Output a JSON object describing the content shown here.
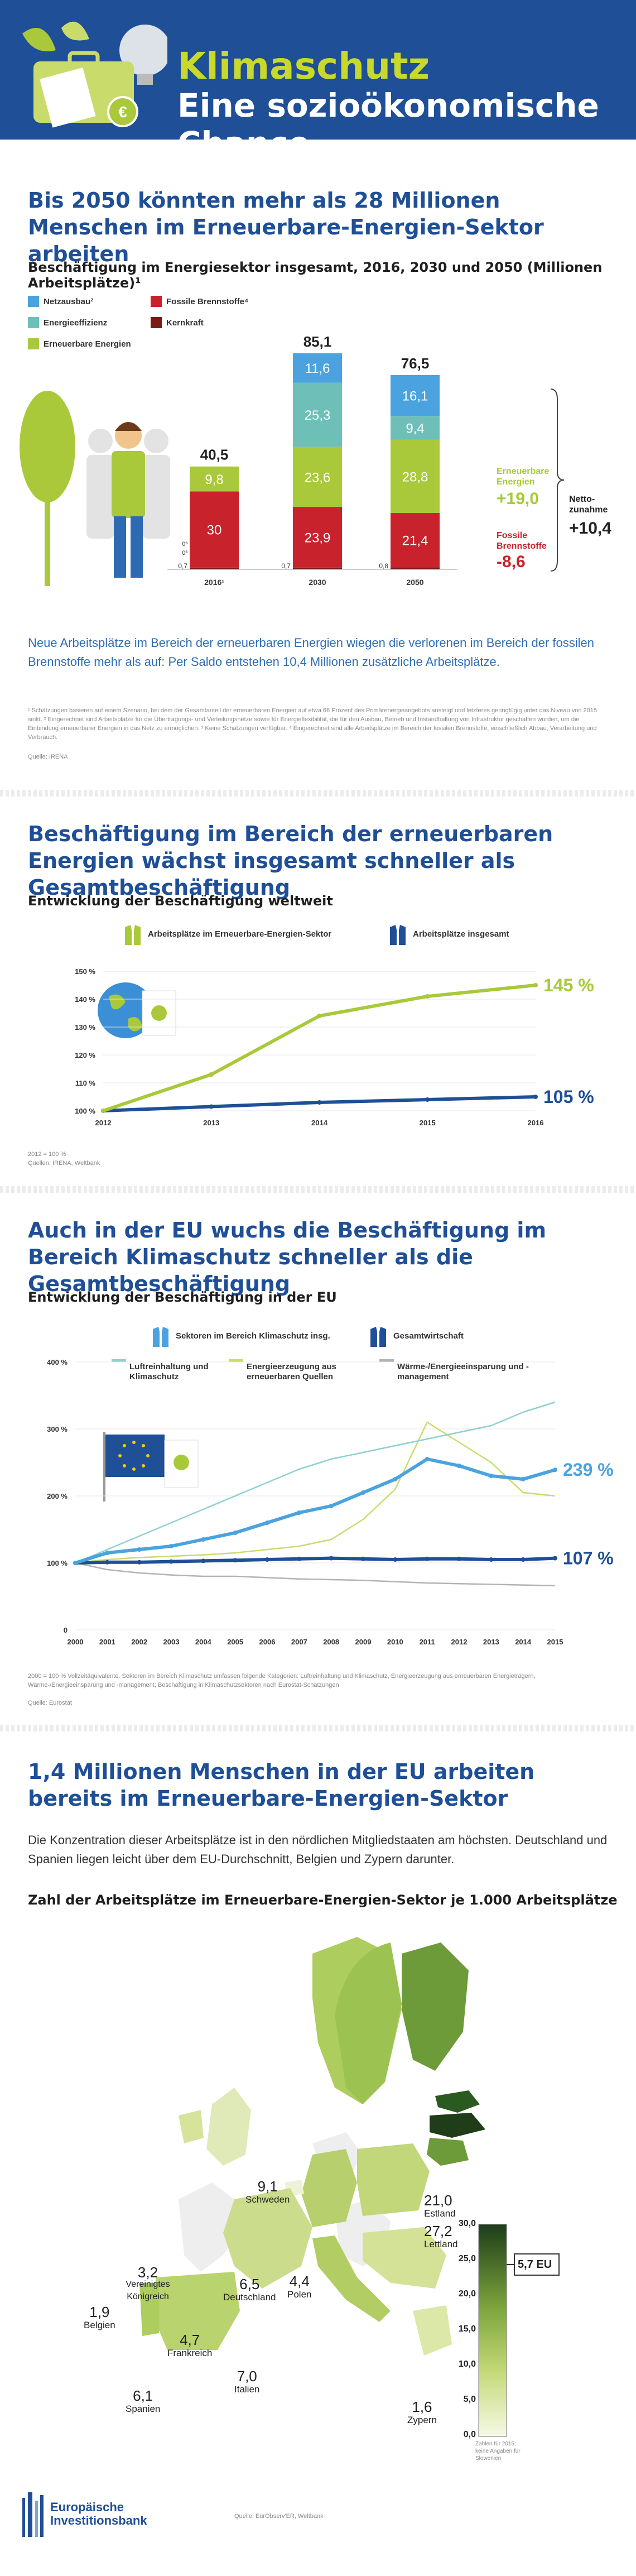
{
  "header": {
    "title": "Klimaschutz",
    "subtitle": "Eine sozioökonomische Chance"
  },
  "colors": {
    "blue_dark": "#1f4f96",
    "lime": "#a9c93a",
    "red": "#c8232c",
    "teal": "#6fbfb9",
    "light_blue": "#4aa3df",
    "grey": "#b3b3b3"
  },
  "section1": {
    "title": "Bis 2050 könnten mehr als 28 Millionen Menschen im Erneuerbare-Energien-Sektor arbeiten",
    "chart_title": "Beschäftigung im Energiesektor insgesamt, 2016, 2030 und 2050 (Millionen Arbeitsplätze)¹",
    "text": "Neue Arbeitsplätze im Bereich der erneuerbaren Energien wiegen die verlorenen im Bereich der fossilen Brennstoffe mehr als auf: Per Saldo entstehen 10,4 Millionen zusätzliche Arbeitsplätze.",
    "footnote": "¹ Schätzungen basieren auf einem Szenario, bei dem der Gesamtanteil der erneuerbaren Energien auf etwa 66 Prozent des Primärenergieangebots ansteigt und letzteres geringfügig unter das Niveau von 2015 sinkt. ² Eingerechnet sind Arbeitsplätze für die Übertragungs- und Verteilungsnetze sowie für Energieflexibilität, die für den Ausbau, Betrieb und Instandhaltung von Infrastruktur geschaffen wurden, um die Einbindung erneuerbarer Energien in das Netz zu ermöglichen. ³ Keine Schätzungen verfügbar. ⁴ Eingerechnet sind alle Arbeitsplätze im Bereich der fossilen Brennstoffe, einschließlich Abbau, Verarbeitung und Verbrauch.",
    "source": "Quelle: IRENA",
    "side": {
      "ren_label": "Erneuerbare Energien",
      "ren_delta": "+19,0",
      "fos_label": "Fossile Brennstoffe",
      "fos_delta": "-8,6",
      "net_label": "Netto-zunahme",
      "net_delta": "+10,4"
    },
    "small_zeros": [
      "0³",
      "0³",
      "0,7"
    ]
  },
  "chart_data": [
    {
      "type": "bar",
      "title": "Beschäftigung im Energiesektor insgesamt, 2016, 2030 und 2050 (Millionen Arbeitsplätze)¹",
      "categories": [
        "2016¹",
        "2030",
        "2050"
      ],
      "totals": [
        "40,5",
        "85,1",
        "76,5"
      ],
      "series": [
        {
          "name": "Kernkraft",
          "values": [
            0.7,
            0.7,
            0.8
          ],
          "labels": [
            "0,7",
            "0,7",
            "0,8"
          ],
          "color": "#7a1a16"
        },
        {
          "name": "Fossile Brennstoffe⁴",
          "values": [
            30,
            23.9,
            21.4
          ],
          "labels": [
            "30",
            "23,9",
            "21,4"
          ],
          "color": "#c8232c"
        },
        {
          "name": "Erneuerbare Energien",
          "values": [
            9.8,
            23.6,
            28.8
          ],
          "labels": [
            "9,8",
            "23,6",
            "28,8"
          ],
          "color": "#a9c93a"
        },
        {
          "name": "Energieeffizienz",
          "values": [
            0,
            25.3,
            9.4
          ],
          "labels": [
            "",
            "25,3",
            "9,4"
          ],
          "color": "#6fbfb9"
        },
        {
          "name": "Netzausbau²",
          "values": [
            0,
            11.6,
            16.1
          ],
          "labels": [
            "",
            "11,6",
            "16,1"
          ],
          "color": "#4aa3df"
        }
      ]
    },
    {
      "type": "line",
      "title": "Entwicklung der Beschäftigung weltweit",
      "x": [
        "2012",
        "2013",
        "2014",
        "2015",
        "2016"
      ],
      "ylim": [
        100,
        150
      ],
      "yticks": [
        "100 %",
        "110 %",
        "120 %",
        "130 %",
        "140 %",
        "150 %"
      ],
      "series": [
        {
          "name": "Arbeitsplätze im Erneuerbare-Energien-Sektor",
          "values": [
            100,
            113,
            134,
            141,
            145
          ],
          "end_label": "145 %",
          "color": "#a9c93a"
        },
        {
          "name": "Arbeitsplätze insgesamt",
          "values": [
            100,
            101.5,
            103,
            104,
            105
          ],
          "end_label": "105 %",
          "color": "#1f4f96"
        }
      ]
    },
    {
      "type": "line",
      "title": "Entwicklung der Beschäftigung in der EU",
      "x": [
        "2000",
        "2001",
        "2002",
        "2003",
        "2004",
        "2005",
        "2006",
        "2007",
        "2008",
        "2009",
        "2010",
        "2011",
        "2012",
        "2013",
        "2014",
        "2015"
      ],
      "ylim": [
        0,
        400
      ],
      "yticks": [
        "0",
        "100 %",
        "200 %",
        "300 %",
        "400 %"
      ],
      "series": [
        {
          "name": "Sektoren im Bereich Klimaschutz insg.",
          "values": [
            100,
            115,
            120,
            125,
            135,
            145,
            160,
            175,
            185,
            205,
            225,
            255,
            245,
            230,
            225,
            239
          ],
          "end_label": "239 %",
          "color": "#4aa3df"
        },
        {
          "name": "Gesamtwirtschaft",
          "values": [
            100,
            101,
            101,
            102,
            103,
            104,
            105,
            106,
            107,
            106,
            105,
            106,
            106,
            105,
            105,
            107
          ],
          "end_label": "107 %",
          "color": "#1f4f96"
        },
        {
          "name": "Luftreinhaltung und Klimaschutz",
          "values": [
            100,
            120,
            140,
            160,
            180,
            200,
            220,
            240,
            255,
            265,
            275,
            285,
            295,
            305,
            325,
            340
          ],
          "color": "#8ed1cf"
        },
        {
          "name": "Energieerzeugung aus erneuerbaren Quellen",
          "values": [
            100,
            105,
            108,
            110,
            112,
            115,
            120,
            125,
            135,
            165,
            210,
            310,
            280,
            250,
            205,
            200
          ],
          "color": "#c9dc6b"
        },
        {
          "name": "Wärme-/Energieeinsparung und -management",
          "values": [
            100,
            90,
            85,
            82,
            80,
            80,
            78,
            76,
            75,
            74,
            72,
            70,
            69,
            68,
            67,
            66
          ],
          "color": "#b3b3b3"
        }
      ]
    },
    {
      "type": "heatmap",
      "title": "Zahl der Arbeitsplätze im Erneuerbare-Energien-Sektor je 1.000 Arbeitsplätze",
      "scale_ticks": [
        "30,0",
        "25,0",
        "20,0",
        "15,0",
        "10,0",
        "5,0",
        "0,0"
      ],
      "scale_range": [
        0,
        30
      ],
      "eu_average": 5.7,
      "eu_label": "5,7 EU",
      "regions": [
        {
          "name": "Estland",
          "value": 21.0,
          "label": "21,0"
        },
        {
          "name": "Lettland",
          "value": 27.2,
          "label": "27,2"
        },
        {
          "name": "Schweden",
          "value": 9.1,
          "label": "9,1"
        },
        {
          "name": "Vereinigtes Königreich",
          "value": 3.2,
          "label": "3,2"
        },
        {
          "name": "Deutschland",
          "value": 6.5,
          "label": "6,5"
        },
        {
          "name": "Polen",
          "value": 4.4,
          "label": "4,4"
        },
        {
          "name": "Belgien",
          "value": 1.9,
          "label": "1,9"
        },
        {
          "name": "Frankreich",
          "value": 4.7,
          "label": "4,7"
        },
        {
          "name": "Spanien",
          "value": 6.1,
          "label": "6,1"
        },
        {
          "name": "Italien",
          "value": 7.0,
          "label": "7,0"
        },
        {
          "name": "Zypern",
          "value": 1.6,
          "label": "1,6"
        }
      ],
      "note": "Zahlen für 2015; keine Angaben für Slowenien"
    }
  ],
  "section2": {
    "title": "Beschäftigung im Bereich der erneuerbaren Energien wächst insgesamt schneller als Gesamtbeschäftigung",
    "chart_title": "Entwicklung der Beschäftigung weltweit",
    "legend_ren": "Arbeitsplätze im Erneuerbare-Energien-Sektor",
    "legend_total": "Arbeitsplätze insgesamt",
    "base_note": "2012 = 100 %",
    "source": "Quellen: IRENA, Weltbank"
  },
  "section3": {
    "title": "Auch in der EU wuchs die Beschäftigung im Bereich Klimaschutz schneller als die Gesamtbeschäftigung",
    "chart_title": "Entwicklung der Beschäftigung in der EU",
    "legend_climate": "Sektoren im Bereich Klimaschutz insg.",
    "legend_econ": "Gesamtwirtschaft",
    "legend_air": "Luftreinhaltung und Klimaschutz",
    "legend_res": "Energieerzeugung aus erneuerbaren Quellen",
    "legend_heat": "Wärme-/Energieeinsparung und -management",
    "footnote": "2000 = 100 % Vollzeitäquivalente. Sektoren im Bereich Klimaschutz umfassen folgende Kategorien: Luftreinhaltung und Klimaschutz, Energieerzeugung aus erneuerbaren Energieträgern, Wärme-/Energieeinsparung und -management; Beschäftigung in Klimaschutzsektoren nach Eurostat-Schätzungen",
    "source": "Quelle: Eurostat"
  },
  "section4": {
    "title": "1,4 Millionen Menschen in der EU arbeiten bereits im Erneuerbare-Energien-Sektor",
    "text": "Die Konzentration dieser Arbeitsplätze ist in den nördlichen Mitgliedstaaten am höchsten. Deutschland und Spanien liegen leicht über dem EU-Durchschnitt, Belgien und Zypern darunter.",
    "chart_title": "Zahl der Arbeitsplätze im Erneuerbare-Energien-Sektor je 1.000 Arbeitsplätze"
  },
  "footer": {
    "logo_line1": "Europäische",
    "logo_line2": "Investitionsbank",
    "source": "Quelle: EurObserv'ER, Weltbank"
  }
}
